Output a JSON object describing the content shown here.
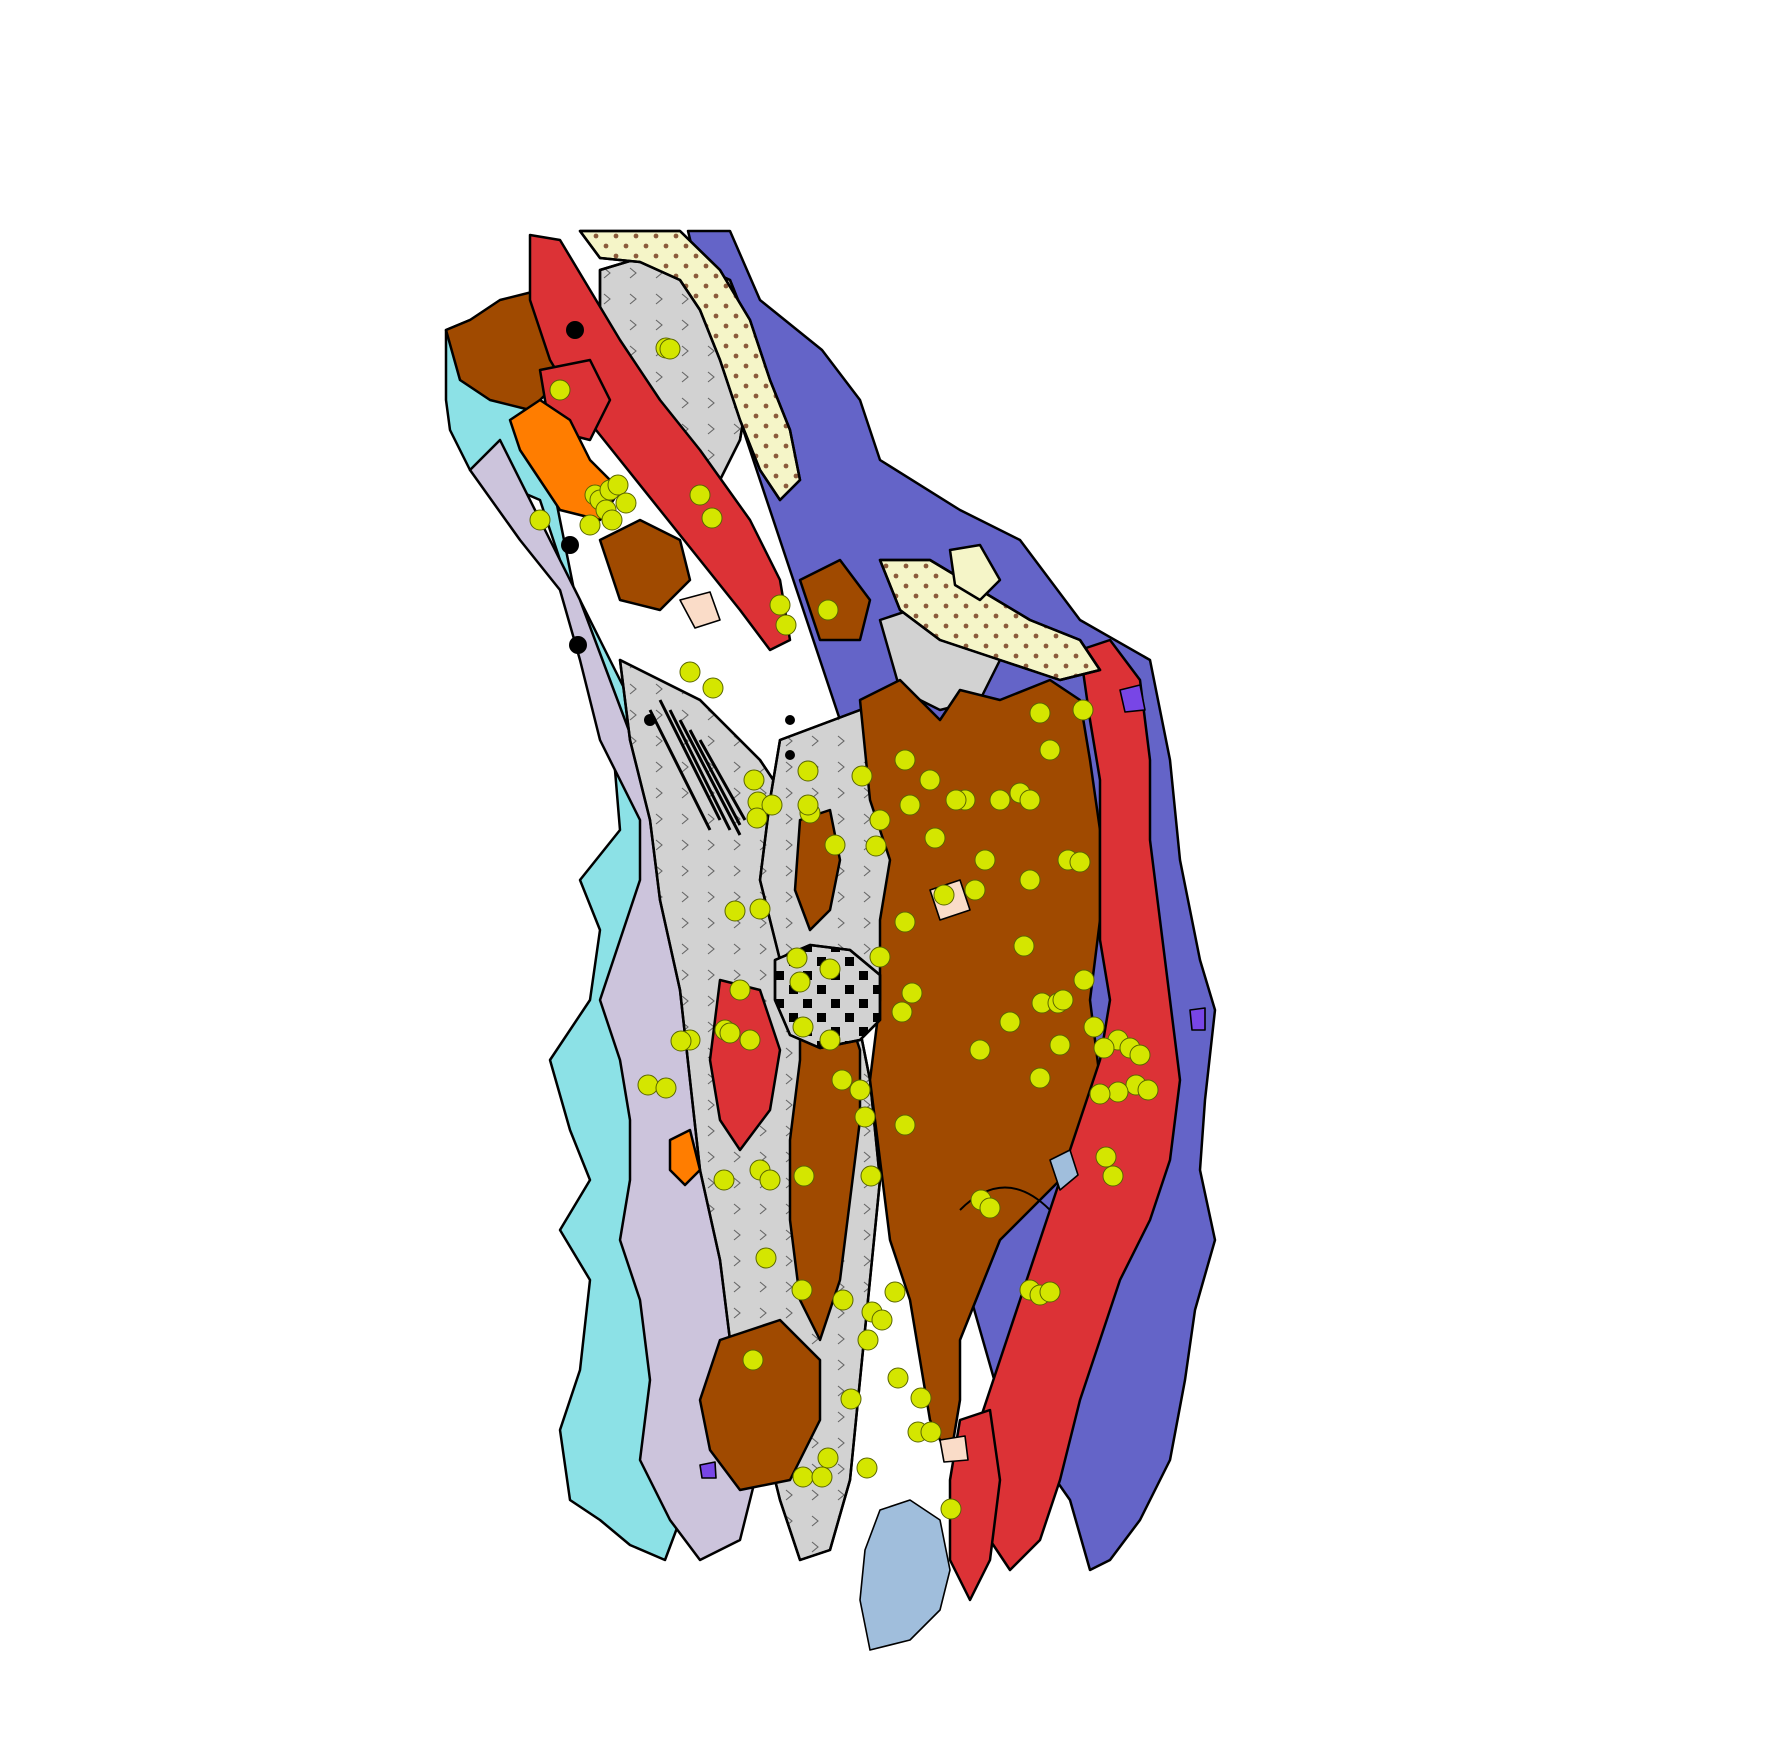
{
  "map": {
    "colors": {
      "offshore": "#6464c8",
      "coastal_cyan": "#8ce1e6",
      "lavender": "#ccc4dc",
      "brown": "#a04a00",
      "red": "#dc3236",
      "gray": "#d2d2d2",
      "cream": "#f5f5c8",
      "orange": "#ff7d00",
      "peach": "#fadcc8",
      "lake": "#a0bedc",
      "violet": "#7846e6",
      "sample_point": "#d4e600"
    },
    "symbols": {
      "sample_point": "circle",
      "gray_unit_pattern": "chevron",
      "cream_unit_pattern": "dots",
      "checker_unit_pattern": "squares"
    },
    "sample_count": 120
  }
}
